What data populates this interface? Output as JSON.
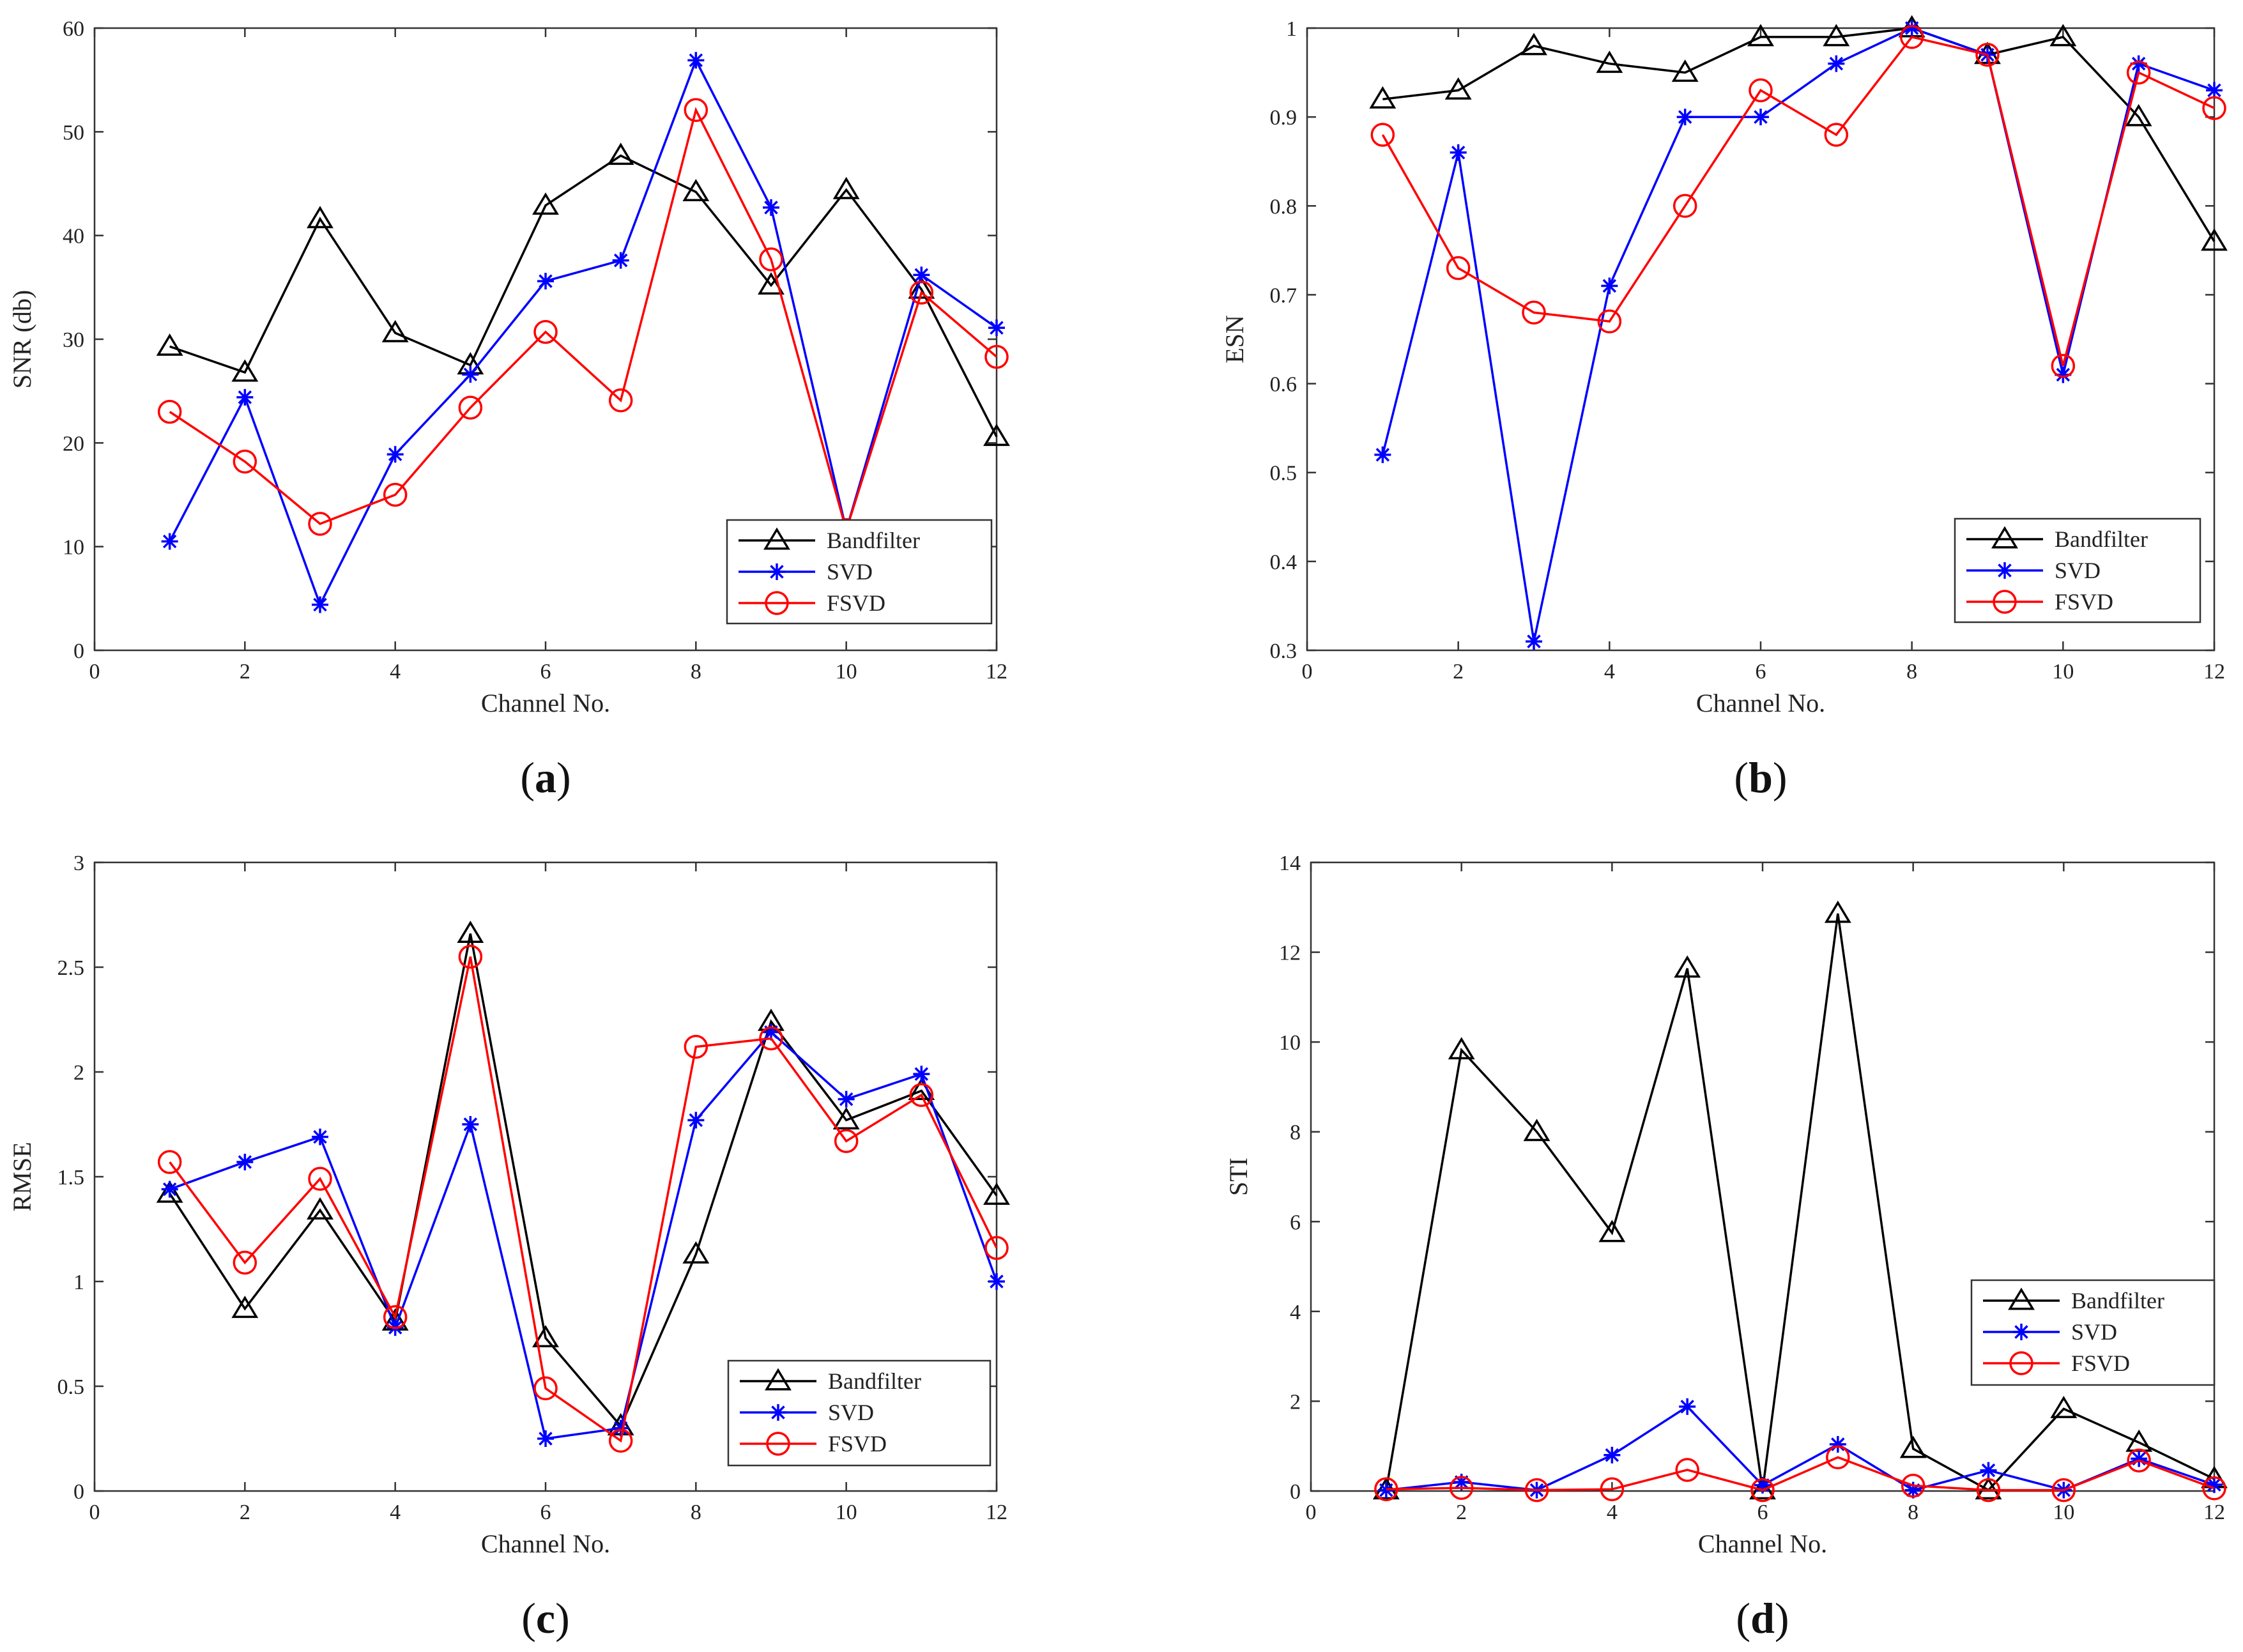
{
  "colors": {
    "bandfilter": "#000000",
    "svd": "#0000ff",
    "fsvd": "#ff0000",
    "axis": "#333333"
  },
  "chart_data": [
    {
      "panel": "a",
      "type": "line",
      "panel_label": "a",
      "xlabel": "Channel No.",
      "ylabel": "SNR (db)",
      "xlim": [
        0,
        12
      ],
      "ylim": [
        0,
        60
      ],
      "xticks": [
        0,
        2,
        4,
        6,
        8,
        10,
        12
      ],
      "xtick_labels": [
        "0",
        "2",
        "4",
        "6",
        "8",
        "10",
        "12"
      ],
      "yticks": [
        0,
        10,
        20,
        30,
        40,
        50,
        60
      ],
      "ytick_labels": [
        "0",
        "10",
        "20",
        "30",
        "40",
        "50",
        "60"
      ],
      "legend_position": "bottom-right",
      "x": [
        1,
        2,
        3,
        4,
        5,
        6,
        7,
        8,
        9,
        10,
        11,
        12
      ],
      "series": [
        {
          "name": "Bandfilter",
          "marker": "triangle",
          "values": [
            29.3,
            26.8,
            41.6,
            30.6,
            27.5,
            42.9,
            47.7,
            44.2,
            35.2,
            44.4,
            34.8,
            20.6
          ]
        },
        {
          "name": "SVD",
          "marker": "asterisk",
          "values": [
            10.5,
            24.4,
            4.4,
            18.9,
            26.6,
            35.6,
            37.6,
            56.9,
            42.7,
            11.6,
            36.2,
            31.1
          ]
        },
        {
          "name": "FSVD",
          "marker": "circle",
          "values": [
            23.0,
            18.2,
            12.2,
            15.0,
            23.4,
            30.7,
            24.1,
            52.1,
            37.7,
            11.6,
            34.5,
            28.3
          ]
        }
      ]
    },
    {
      "panel": "b",
      "type": "line",
      "panel_label": "b",
      "xlabel": "Channel No.",
      "ylabel": "ESN",
      "xlim": [
        0,
        12
      ],
      "ylim": [
        0.3,
        1
      ],
      "xticks": [
        0,
        2,
        4,
        6,
        8,
        10,
        12
      ],
      "xtick_labels": [
        "0",
        "2",
        "4",
        "6",
        "8",
        "10",
        "12"
      ],
      "yticks": [
        0.3,
        0.4,
        0.5,
        0.6,
        0.7,
        0.8,
        0.9,
        1
      ],
      "ytick_labels": [
        "0.3",
        "0.4",
        "0.5",
        "0.6",
        "0.7",
        "0.8",
        "0.9",
        "1"
      ],
      "legend_position": "bottom-right",
      "x": [
        1,
        2,
        3,
        4,
        5,
        6,
        7,
        8,
        9,
        10,
        11,
        12
      ],
      "series": [
        {
          "name": "Bandfilter",
          "marker": "triangle",
          "values": [
            0.92,
            0.93,
            0.98,
            0.96,
            0.95,
            0.99,
            0.99,
            1.0,
            0.97,
            0.99,
            0.9,
            0.76
          ]
        },
        {
          "name": "SVD",
          "marker": "asterisk",
          "values": [
            0.52,
            0.86,
            0.31,
            0.71,
            0.9,
            0.9,
            0.96,
            1.0,
            0.97,
            0.61,
            0.96,
            0.93
          ]
        },
        {
          "name": "FSVD",
          "marker": "circle",
          "values": [
            0.88,
            0.73,
            0.68,
            0.67,
            0.8,
            0.93,
            0.88,
            0.99,
            0.97,
            0.62,
            0.95,
            0.91
          ]
        }
      ]
    },
    {
      "panel": "c",
      "type": "line",
      "panel_label": "c",
      "xlabel": "Channel No.",
      "ylabel": "RMSE",
      "xlim": [
        0,
        12
      ],
      "ylim": [
        0,
        3
      ],
      "xticks": [
        0,
        2,
        4,
        6,
        8,
        10,
        12
      ],
      "xtick_labels": [
        "0",
        "2",
        "4",
        "6",
        "8",
        "10",
        "12"
      ],
      "yticks": [
        0,
        0.5,
        1,
        1.5,
        2,
        2.5,
        3
      ],
      "ytick_labels": [
        "0",
        "0.5",
        "1",
        "1.5",
        "2",
        "2.5",
        "3"
      ],
      "legend_position": "bottom-right",
      "x": [
        1,
        2,
        3,
        4,
        5,
        6,
        7,
        8,
        9,
        10,
        11,
        12
      ],
      "series": [
        {
          "name": "Bandfilter",
          "marker": "triangle",
          "values": [
            1.42,
            0.87,
            1.34,
            0.81,
            2.66,
            0.73,
            0.31,
            1.13,
            2.24,
            1.77,
            1.91,
            1.41
          ]
        },
        {
          "name": "SVD",
          "marker": "asterisk",
          "values": [
            1.44,
            1.57,
            1.69,
            0.78,
            1.75,
            0.25,
            0.3,
            1.77,
            2.19,
            1.87,
            1.99,
            1.0
          ]
        },
        {
          "name": "FSVD",
          "marker": "circle",
          "values": [
            1.57,
            1.09,
            1.49,
            0.83,
            2.55,
            0.49,
            0.24,
            2.12,
            2.16,
            1.67,
            1.89,
            1.16
          ]
        }
      ]
    },
    {
      "panel": "d",
      "type": "line",
      "panel_label": "d",
      "xlabel": "Channel No.",
      "ylabel": "STI",
      "xlim": [
        0,
        12
      ],
      "ylim": [
        0,
        14
      ],
      "xticks": [
        0,
        2,
        4,
        6,
        8,
        10,
        12
      ],
      "xtick_labels": [
        "0",
        "2",
        "4",
        "6",
        "8",
        "10",
        "12"
      ],
      "yticks": [
        0,
        2,
        4,
        6,
        8,
        10,
        12,
        14
      ],
      "ytick_labels": [
        "0",
        "2",
        "4",
        "6",
        "8",
        "10",
        "12",
        "14"
      ],
      "legend_position": "bottom-right",
      "x": [
        1,
        2,
        3,
        4,
        5,
        6,
        7,
        8,
        9,
        10,
        11,
        12
      ],
      "series": [
        {
          "name": "Bandfilter",
          "marker": "triangle",
          "values": [
            0.02,
            9.82,
            8.0,
            5.75,
            11.64,
            0.02,
            12.86,
            0.94,
            0.02,
            1.83,
            1.08,
            0.27
          ]
        },
        {
          "name": "SVD",
          "marker": "asterisk",
          "values": [
            0.02,
            0.2,
            0.02,
            0.8,
            1.88,
            0.13,
            1.04,
            0.02,
            0.46,
            0.02,
            0.72,
            0.14
          ]
        },
        {
          "name": "FSVD",
          "marker": "circle",
          "values": [
            0.04,
            0.07,
            0.02,
            0.04,
            0.47,
            0.02,
            0.75,
            0.12,
            0.02,
            0.02,
            0.68,
            0.06
          ]
        }
      ]
    }
  ]
}
